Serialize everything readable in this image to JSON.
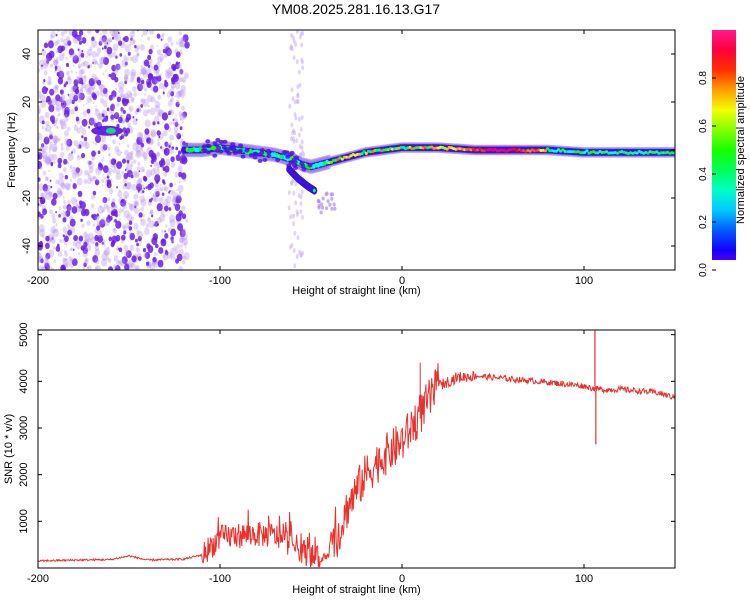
{
  "title": "YM08.2025.281.16.13.G17",
  "chart_data": [
    {
      "type": "heatmap",
      "xlabel": "Height of straight line (km)",
      "ylabel": "Frequency (Hz)",
      "xlim": [
        -200,
        150
      ],
      "ylim": [
        -50,
        50
      ],
      "xticks": [
        -200,
        -100,
        0,
        100
      ],
      "yticks": [
        -40,
        -20,
        0,
        20,
        40
      ],
      "colorbar": {
        "label": "Normalized spectral amplitude",
        "range": [
          0,
          1
        ],
        "ticks": [
          "0.0",
          "0.2",
          "0.4",
          "0.6",
          "0.8"
        ]
      },
      "ridge": {
        "x": [
          -120,
          -110,
          -100,
          -90,
          -80,
          -70,
          -60,
          -55,
          -50,
          -45,
          -40,
          -30,
          -20,
          -10,
          0,
          10,
          20,
          40,
          60,
          80,
          100,
          120,
          150
        ],
        "freq": [
          0,
          0,
          1,
          0,
          -1,
          -2,
          -4,
          -6,
          -7,
          -6,
          -5,
          -3,
          -1,
          0,
          1,
          1,
          1,
          0,
          0,
          0,
          -1,
          -1,
          -1
        ]
      },
      "secondary_ridge": {
        "x": [
          -62,
          -57,
          -52,
          -48
        ],
        "freq": [
          -8,
          -12,
          -15,
          -17
        ]
      }
    },
    {
      "type": "line",
      "xlabel": "Height of straight line (km)",
      "ylabel": "SNR (10 * v/v)",
      "xlim": [
        -200,
        150
      ],
      "ylim": [
        0,
        5100
      ],
      "xticks": [
        -200,
        -100,
        0,
        100
      ],
      "yticks": [
        1000,
        2000,
        3000,
        4000,
        5000
      ],
      "color": "#e8302c",
      "series": [
        {
          "name": "SNR",
          "x": [
            -200,
            -180,
            -160,
            -150,
            -140,
            -120,
            -110,
            -100,
            -90,
            -80,
            -70,
            -60,
            -50,
            -45,
            -40,
            -35,
            -30,
            -20,
            -10,
            0,
            5,
            10,
            15,
            20,
            30,
            40,
            60,
            80,
            100,
            105,
            110,
            120,
            140,
            150
          ],
          "values": [
            150,
            170,
            180,
            260,
            170,
            190,
            280,
            650,
            700,
            720,
            700,
            500,
            250,
            180,
            300,
            700,
            1300,
            2000,
            2400,
            2700,
            3000,
            3300,
            3600,
            3900,
            4080,
            4120,
            4050,
            3980,
            3900,
            3850,
            3820,
            3830,
            3760,
            3650
          ]
        }
      ],
      "events": [
        {
          "x": 106,
          "value": 5100
        },
        {
          "x": 106.5,
          "value": 2650
        },
        {
          "x": 10,
          "value": 4400
        }
      ]
    }
  ]
}
